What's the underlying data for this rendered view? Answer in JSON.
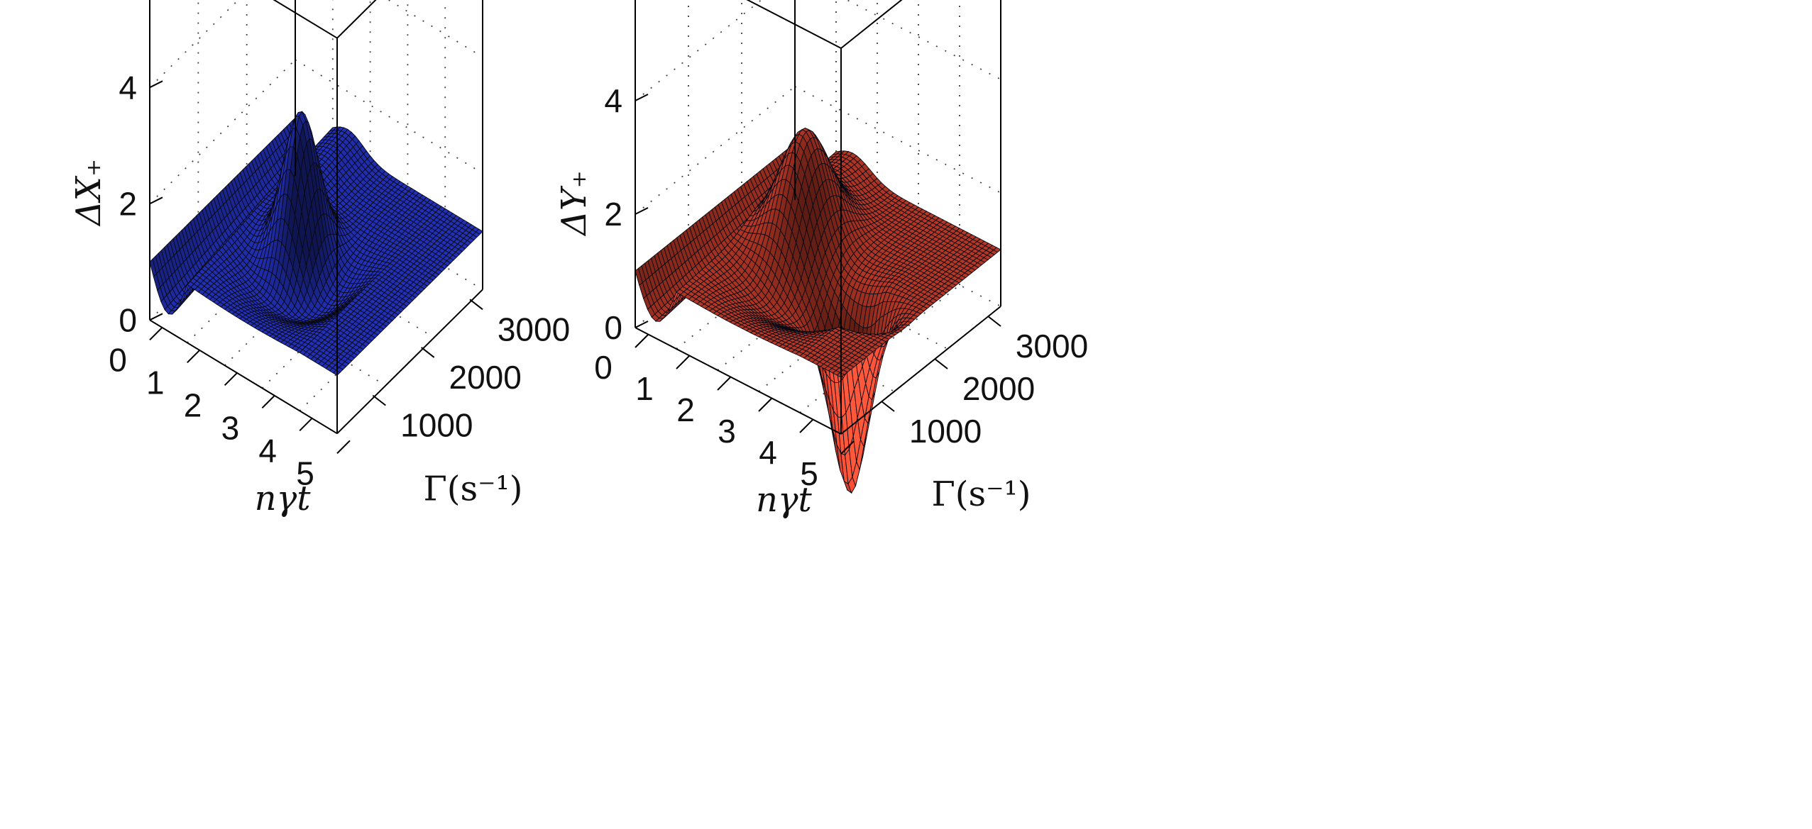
{
  "chart_data": [
    {
      "type": "surface3d",
      "color": "#2b3de8",
      "zlabel": "ΔX₊",
      "xlabel": "nγt",
      "ylabel": "Γ(s⁻¹)",
      "x_ticks": [
        "0",
        "1",
        "2",
        "3",
        "4",
        "5"
      ],
      "y_ticks": [
        "1000",
        "2000",
        "3000"
      ],
      "z_ticks": [
        "0",
        "2",
        "4"
      ],
      "xlim": [
        0,
        5
      ],
      "ylim": [
        0,
        3000
      ],
      "zlim": [
        0,
        5
      ],
      "grid": true,
      "surface": {
        "peak_height": 3.8,
        "peak_x": 2.2,
        "peak_y": 1400,
        "trough_min": 0.25,
        "trough_x": 2.2,
        "plateau_start": 1.0,
        "plateau_end": 2.0
      }
    },
    {
      "type": "surface3d",
      "color": "#e8462f",
      "zlabel": "ΔY₊",
      "xlabel": "nγt",
      "ylabel": "Γ(s⁻¹)",
      "x_ticks": [
        "0",
        "1",
        "2",
        "3",
        "4",
        "5"
      ],
      "y_ticks": [
        "1000",
        "2000",
        "3000"
      ],
      "z_ticks": [
        "0",
        "2",
        "4"
      ],
      "xlim": [
        0,
        5
      ],
      "ylim": [
        0,
        3000
      ],
      "zlim": [
        0,
        5
      ],
      "grid": true,
      "surface": {
        "peak_height": 3.0,
        "peak_x": 2.2,
        "peak_y": 1400,
        "dip_min": -2.4,
        "trough_min": 0.3,
        "plateau_start": 1.0,
        "plateau_end": 2.0
      }
    }
  ]
}
